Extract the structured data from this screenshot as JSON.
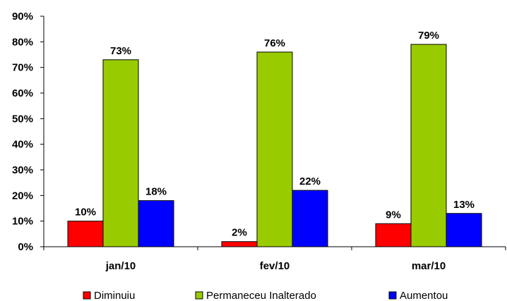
{
  "chart_data": {
    "type": "bar",
    "categories": [
      "jan/10",
      "fev/10",
      "mar/10"
    ],
    "series": [
      {
        "name": "Diminuiu",
        "values": [
          10,
          2,
          9
        ],
        "labels": [
          "10%",
          "2%",
          "9%"
        ],
        "color": "#ff0000"
      },
      {
        "name": "Permaneceu Inalterado",
        "values": [
          73,
          76,
          79
        ],
        "labels": [
          "73%",
          "76%",
          "79%"
        ],
        "color": "#99cc00"
      },
      {
        "name": "Aumentou",
        "values": [
          18,
          22,
          13
        ],
        "labels": [
          "18%",
          "22%",
          "13%"
        ],
        "color": "#0000ff"
      }
    ],
    "yticks": [
      "0%",
      "10%",
      "20%",
      "30%",
      "40%",
      "50%",
      "60%",
      "70%",
      "80%",
      "90%"
    ],
    "ylim": [
      0,
      90
    ],
    "grid": false,
    "legend": "bottom"
  }
}
